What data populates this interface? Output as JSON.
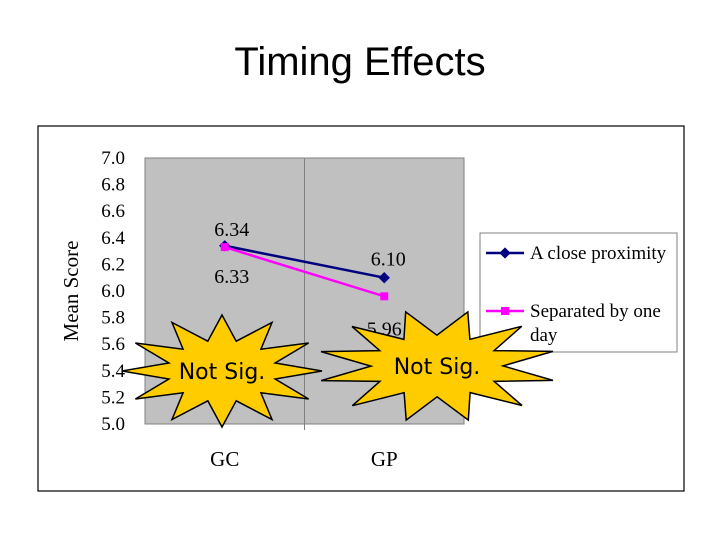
{
  "slide": {
    "title": "Timing Effects"
  },
  "chart_data": {
    "type": "line",
    "title": "",
    "xlabel": "",
    "ylabel": "Mean Score",
    "categories": [
      "GC",
      "GP"
    ],
    "ylim": [
      5.0,
      7.0
    ],
    "yticks": [
      "7.0",
      "6.8",
      "6.6",
      "6.4",
      "6.2",
      "6.0",
      "5.8",
      "5.6",
      "5.4",
      "5.2",
      "5.0"
    ],
    "grid": false,
    "legend_position": "right",
    "series": [
      {
        "name": "A close proximity",
        "values": [
          6.34,
          6.1
        ],
        "labels": [
          "6.34",
          "6.10"
        ],
        "color": "#000080"
      },
      {
        "name": "Separated by one day",
        "values": [
          6.33,
          5.96
        ],
        "labels": [
          "6.33",
          "5.96"
        ],
        "color": "#FF00FF"
      }
    ],
    "annotations": [
      {
        "text": "Not Sig.",
        "category": "GC"
      },
      {
        "text": "Not Sig.",
        "category": "GP"
      }
    ]
  },
  "colors": {
    "plot_background": "#C0C0C0",
    "starburst_fill": "#FFCC00"
  }
}
